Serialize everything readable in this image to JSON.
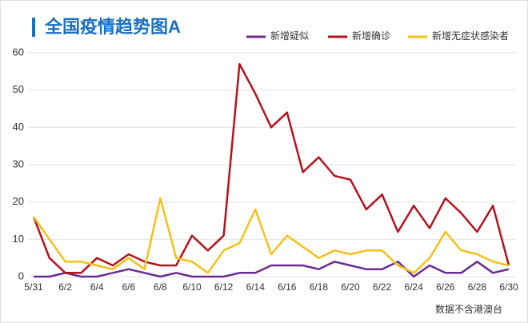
{
  "chart_data": {
    "type": "line",
    "title": "全国疫情趋势图A",
    "note": "数据不含港澳台",
    "categories": [
      "5/31",
      null,
      "6/2",
      null,
      "6/4",
      null,
      "6/6",
      null,
      "6/8",
      null,
      "6/10",
      null,
      "6/12",
      null,
      "6/14",
      null,
      "6/16",
      null,
      "6/18",
      null,
      "6/20",
      null,
      "6/22",
      null,
      "6/24",
      null,
      "6/26",
      null,
      "6/28",
      null,
      "6/30"
    ],
    "series": [
      {
        "name": "新增疑似",
        "color": "#6a2c91",
        "values": [
          0,
          0,
          1,
          0,
          0,
          1,
          2,
          1,
          0,
          1,
          0,
          0,
          0,
          1,
          1,
          3,
          3,
          3,
          2,
          4,
          3,
          2,
          2,
          4,
          0,
          3,
          1,
          1,
          4,
          1,
          2
        ]
      },
      {
        "name": "新增确诊",
        "color": "#b5121b",
        "values": [
          16,
          5,
          1,
          1,
          5,
          3,
          6,
          4,
          3,
          3,
          11,
          7,
          11,
          57,
          49,
          40,
          44,
          28,
          32,
          27,
          26,
          18,
          22,
          12,
          19,
          13,
          21,
          17,
          12,
          19,
          3
        ]
      },
      {
        "name": "新增无症状感染者",
        "color": "#f5c018",
        "values": [
          16,
          10,
          4,
          4,
          3,
          2,
          5,
          2,
          21,
          5,
          4,
          1,
          7,
          9,
          18,
          6,
          11,
          8,
          5,
          7,
          6,
          7,
          7,
          3,
          1,
          5,
          12,
          7,
          6,
          4,
          3
        ]
      }
    ],
    "ylim": [
      0,
      60
    ],
    "yticks": [
      0,
      10,
      20,
      30,
      40,
      50,
      60
    ],
    "grid": true,
    "legend": "top"
  }
}
